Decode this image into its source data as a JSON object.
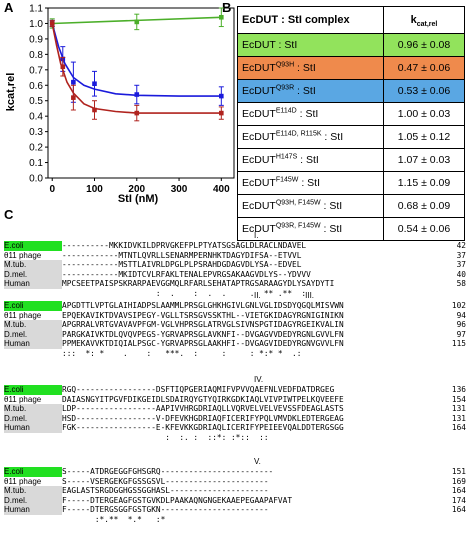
{
  "panel_labels": {
    "a": "A",
    "b": "B",
    "c": "C"
  },
  "chart_data": {
    "type": "line",
    "xlabel": "StI (nM)",
    "ylabel": "kcat,rel",
    "xlim": [
      -10,
      430
    ],
    "ylim": [
      0.0,
      1.1
    ],
    "x_ticks": [
      "0",
      "100",
      "200",
      "300",
      "400"
    ],
    "y_ticks": [
      "0.0",
      "0.1",
      "0.2",
      "0.3",
      "0.4",
      "0.5",
      "0.6",
      "0.7",
      "0.8",
      "0.9",
      "1.0",
      "1.1"
    ],
    "grid": false,
    "series": [
      {
        "color": "#4caf2a",
        "x": [
          0,
          200,
          400
        ],
        "y": [
          1.0,
          1.01,
          1.04
        ],
        "err": [
          0.03,
          0.05,
          0.06
        ],
        "fit": [
          [
            0,
            1.0
          ],
          [
            400,
            1.04
          ]
        ]
      },
      {
        "color": "#1a1adb",
        "x": [
          0,
          25,
          50,
          100,
          200,
          400
        ],
        "y": [
          1.0,
          0.77,
          0.62,
          0.61,
          0.54,
          0.53
        ],
        "err": [
          0.02,
          0.08,
          0.13,
          0.08,
          0.06,
          0.06
        ],
        "fit": [
          [
            0,
            1.0
          ],
          [
            15,
            0.85
          ],
          [
            30,
            0.74
          ],
          [
            50,
            0.65
          ],
          [
            75,
            0.6
          ],
          [
            100,
            0.575
          ],
          [
            150,
            0.545
          ],
          [
            200,
            0.535
          ],
          [
            300,
            0.53
          ],
          [
            400,
            0.53
          ]
        ]
      },
      {
        "color": "#b0231e",
        "x": [
          0,
          25,
          50,
          100,
          200,
          400
        ],
        "y": [
          1.0,
          0.72,
          0.52,
          0.44,
          0.42,
          0.42
        ],
        "err": [
          0.02,
          0.06,
          0.08,
          0.06,
          0.05,
          0.04
        ],
        "fit": [
          [
            0,
            1.0
          ],
          [
            10,
            0.86
          ],
          [
            20,
            0.74
          ],
          [
            35,
            0.62
          ],
          [
            50,
            0.55
          ],
          [
            75,
            0.48
          ],
          [
            100,
            0.45
          ],
          [
            150,
            0.43
          ],
          [
            200,
            0.42
          ],
          [
            300,
            0.42
          ],
          [
            400,
            0.42
          ]
        ]
      }
    ]
  },
  "table": {
    "header_left": "EcDUT : StI complex",
    "header_right_main": "k",
    "header_right_sub": "cat,rel",
    "rows": [
      {
        "pre": "EcDUT : StI",
        "sup": "",
        "post": "",
        "value": "0.96 ± 0.08",
        "bg": "#92e35c"
      },
      {
        "pre": "EcDUT",
        "sup": "Q93H",
        "post": " : StI",
        "value": "0.47 ± 0.06",
        "bg": "#ef8a4c"
      },
      {
        "pre": "EcDUT",
        "sup": "Q93R",
        "post": " : StI",
        "value": "0.53 ± 0.06",
        "bg": "#5aa7e3"
      },
      {
        "pre": "EcDUT",
        "sup": "E114D",
        "post": " : StI",
        "value": "1.00 ± 0.03",
        "bg": "#ffffff"
      },
      {
        "pre": "EcDUT",
        "sup": "E114D, R115K",
        "post": " : StI",
        "value": "1.05 ± 0.12",
        "bg": "#ffffff"
      },
      {
        "pre": "EcDUT",
        "sup": "H147S",
        "post": " : StI",
        "value": "1.07 ± 0.03",
        "bg": "#ffffff"
      },
      {
        "pre": "EcDUT",
        "sup": "F145W",
        "post": " : StI",
        "value": "1.15 ± 0.09",
        "bg": "#ffffff"
      },
      {
        "pre": "EcDUT",
        "sup": "Q93H, F145W",
        "post": " : StI",
        "value": "0.68 ± 0.09",
        "bg": "#ffffff"
      },
      {
        "pre": "EcDUT",
        "sup": "Q93R, F145W",
        "post": " : StI",
        "value": "0.54 ± 0.06",
        "bg": "#ffffff"
      }
    ]
  },
  "alignment": {
    "blocks": [
      {
        "top": 241,
        "motif": "I.",
        "rows": [
          {
            "name": "E.coli",
            "style": "hl",
            "seq": "----------MKKIDVKILDPRVGKEFPLPTYATSGSAGLDLRACLNDAVEL",
            "num": "42"
          },
          {
            "name": "θ11 phage",
            "style": "",
            "seq": "------------MTNTLQVRLLSENARMPERNHKTDAGYDIFSA--ETVVL",
            "num": "37"
          },
          {
            "name": "M.tub.",
            "style": "gray",
            "seq": "------------MSTTLAIVRLDPGLPLPSRAHDGDAGVDLYSA--EDVEL",
            "num": "37"
          },
          {
            "name": "D.mel.",
            "style": "gray",
            "seq": "------------MKIDTCVLRFAKLTENALEPVRGSAKAAGVDLYS--YDVVV",
            "num": "40"
          },
          {
            "name": "Human",
            "style": "gray",
            "seq": "MPCSEETPAISPSKRARPAEVGGMQLRFARLSEHATAPTRGSARAAGYDLYSAYDYTI",
            "num": "58"
          },
          {
            "name": "",
            "style": "",
            "seq": "                    :  .    :  .  .     .  ** .**  :",
            "num": ""
          }
        ]
      },
      {
        "top": 301,
        "motif": "II.                    III.",
        "rows": [
          {
            "name": "E.coli",
            "style": "hl",
            "seq": "APGDTTLVPTGLAIHIADPSLAAMMLPRSGLGHKHGIVLGNLVGLIDSDYQGQLMISVWN",
            "num": "102"
          },
          {
            "name": "θ11 phage",
            "style": "",
            "seq": "EPQEKAVIKTDVAVSIPEGY-VGLLTSRSGVSSKTHL--VIETGKIDAGYRGNIGINIKN",
            "num": "94"
          },
          {
            "name": "M.tub.",
            "style": "gray",
            "seq": "APGRRALVRTGVAVAVPFGM-VGLVHPRSGLATRVGLSIVNSPGTIDAGYRGEIKVALIN",
            "num": "96"
          },
          {
            "name": "D.mel.",
            "style": "gray",
            "seq": "PARGKAIVKTDLQVQVPEGS-YGRVAPRSGLAVKNFI--DVGAGVVDEDYRGNLGVVLFN",
            "num": "97"
          },
          {
            "name": "Human",
            "style": "gray",
            "seq": "PPMEKAVVKTDIQIALPSGC-YGRVAPRSGLAAKHFI--DVGAGVIDEDYRGNVGVVLFN",
            "num": "115"
          },
          {
            "name": "",
            "style": "",
            "seq": ":::  *: *    .    :   ***.  :     :     : *:* *  .:",
            "num": ""
          }
        ]
      },
      {
        "top": 385,
        "motif": "IV.",
        "rows": [
          {
            "name": "E.coli",
            "style": "hl",
            "seq": "RGQ-----------------DSFTIQPGERIAQMIFVPVVQAEFNLVEDFDATDRGEG",
            "num": "136"
          },
          {
            "name": "θ11 phage",
            "style": "",
            "seq": "DAIASNGYITPGVFDIKGEIDLSDAIRQYGTYQIRKGDKIAQLVIVPIWTPELKQVEEFE",
            "num": "154"
          },
          {
            "name": "M.tub.",
            "style": "gray",
            "seq": "LDP-----------------AAPIVVHRGDRIAQLLVQRVELVELVEVSSFDEAGLASTS",
            "num": "131"
          },
          {
            "name": "D.mel.",
            "style": "gray",
            "seq": "HSD-----------------V-DFEVKHGDRIAQFICERIFYPQLVMVDKLEDTERGEAG",
            "num": "131"
          },
          {
            "name": "Human",
            "style": "gray",
            "seq": "FGK-----------------E-KFEVKKGDRIAQLICERIFYPEIEEVQALDDTERGSGG",
            "num": "164"
          },
          {
            "name": "",
            "style": "",
            "seq": "                      :  :. :  ::*: :*::  ::",
            "num": ""
          }
        ]
      },
      {
        "top": 467,
        "motif": "V.",
        "rows": [
          {
            "name": "E.coli",
            "style": "hl",
            "seq": "S-----ATDRGEGGFGHSGRQ------------------------",
            "num": "151"
          },
          {
            "name": "θ11 phage",
            "style": "",
            "seq": "S-----VSERGEKGFGSSGSVL----------------------",
            "num": "169"
          },
          {
            "name": "M.tub.",
            "style": "gray",
            "seq": "EAGLASTSRGDGGHGSSGGHASL---------------------",
            "num": "164"
          },
          {
            "name": "D.mel.",
            "style": "gray",
            "seq": "F-----DTERGEAGFGSTGVKDLPAAKAQNGNGEKAAEPEGAAPAFVAT",
            "num": "174"
          },
          {
            "name": "Human",
            "style": "gray",
            "seq": "F-----DTERGSGGFGSTGKN-----------------------",
            "num": "164"
          },
          {
            "name": "",
            "style": "",
            "seq": "       :*.**  *.*   :*",
            "num": ""
          }
        ]
      }
    ]
  }
}
